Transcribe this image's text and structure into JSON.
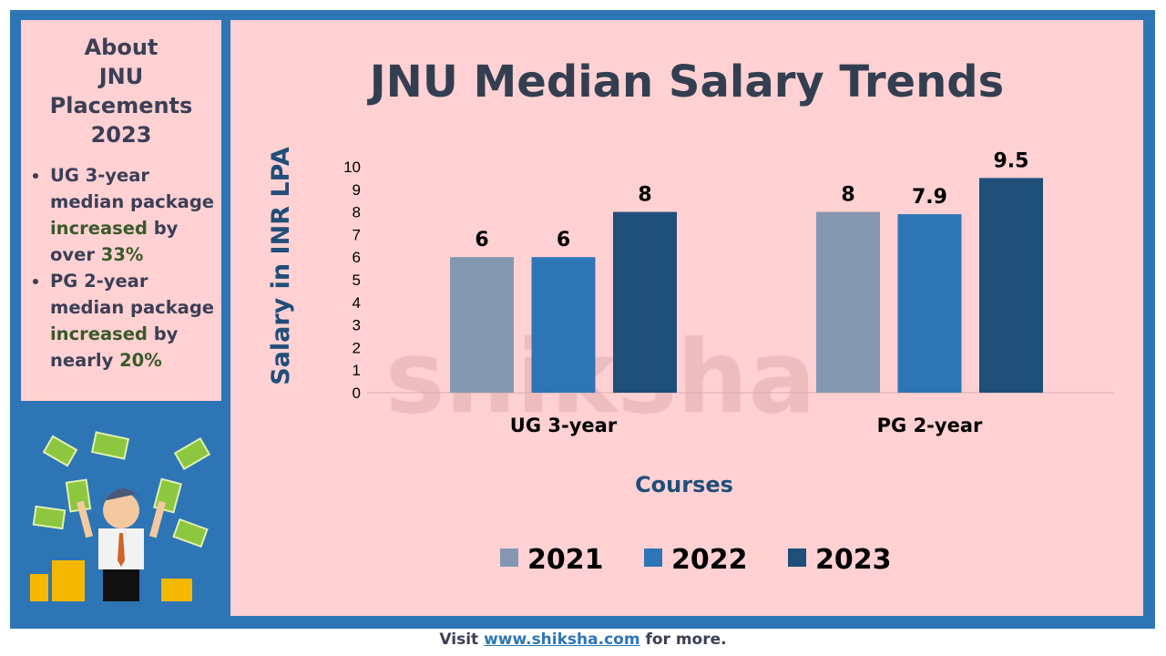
{
  "sidebar": {
    "heading_lines": [
      "About",
      "JNU",
      "Placements",
      "2023"
    ],
    "bullets": [
      {
        "a": "UG 3-year median package ",
        "b": "increased",
        "c": " by over ",
        "d": "33%"
      },
      {
        "a": "PG 2-year median package ",
        "b": "increased",
        "c": " by nearly ",
        "d": "20%"
      }
    ]
  },
  "footer": {
    "pre": "Visit ",
    "link": "www.shiksha.com",
    "post": " for more."
  },
  "watermark": "shiksha",
  "colors": {
    "2021": "#8497b0",
    "2022": "#2e75b6",
    "2023": "#1f4e79",
    "frame": "#2e75b6",
    "panel": "#ffd1d3"
  },
  "chart_data": {
    "type": "bar",
    "title": "JNU Median Salary Trends",
    "xlabel": "Courses",
    "ylabel": "Salary in INR LPA",
    "ylim": [
      0,
      10
    ],
    "yticks": [
      0,
      1,
      2,
      3,
      4,
      5,
      6,
      7,
      8,
      9,
      10
    ],
    "categories": [
      "UG 3-year",
      "PG 2-year"
    ],
    "series": [
      {
        "name": "2021",
        "values": [
          6,
          8
        ],
        "color": "#8497b0"
      },
      {
        "name": "2022",
        "values": [
          6,
          7.9
        ],
        "color": "#2e75b6"
      },
      {
        "name": "2023",
        "values": [
          8,
          9.5
        ],
        "color": "#1f4e79"
      }
    ],
    "legend": "bottom",
    "grid": false,
    "data_labels": true
  }
}
